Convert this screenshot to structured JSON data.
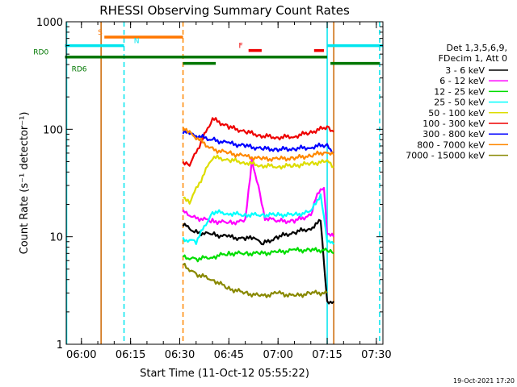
{
  "chart_data": {
    "type": "line",
    "title": "RHESSI Observing Summary Count Rates",
    "xlabel": "Start Time (11-Oct-12 05:55:22)",
    "ylabel": "Count Rate (s⁻¹ detector⁻¹)",
    "y_scale": "log",
    "ylim": [
      1,
      1000
    ],
    "xlim": [
      "05:55:22",
      "07:32:00"
    ],
    "x_tick_labels": [
      "06:00",
      "06:15",
      "06:30",
      "06:45",
      "07:00",
      "07:15",
      "07:30"
    ],
    "y_tick_labels": [
      "1",
      "10",
      "100",
      "1000"
    ],
    "timestamp": "19-Oct-2021 17:20",
    "legend": {
      "placement": "right",
      "header": [
        "Det 1,3,5,6,9,",
        "FDecim 1, Att 0"
      ],
      "entries": [
        {
          "label": "3 - 6 keV",
          "color": "#000000"
        },
        {
          "label": "6 - 12 keV",
          "color": "#ff00ff"
        },
        {
          "label": "12 - 25 keV",
          "color": "#00dd00"
        },
        {
          "label": "25 - 50 keV",
          "color": "#00ffff"
        },
        {
          "label": "50 - 100 keV",
          "color": "#dddd00"
        },
        {
          "label": "100 - 300 keV",
          "color": "#ee0000"
        },
        {
          "label": "300 - 800 keV",
          "color": "#0000ff"
        },
        {
          "label": "800 - 7000 keV",
          "color": "#ff8800"
        },
        {
          "label": "7000 - 15000 keV",
          "color": "#888800"
        }
      ]
    },
    "flags": [
      {
        "label": "S",
        "color": "#ff7700",
        "segments": [
          [
            "06:07",
            "06:31"
          ]
        ],
        "level": 720
      },
      {
        "label": "N",
        "color": "#00e5ee",
        "segments": [
          [
            "05:55",
            "06:13"
          ],
          [
            "07:15",
            "07:32"
          ]
        ],
        "level": 600
      },
      {
        "label": "F",
        "color": "#ee0000",
        "segments": [
          [
            "06:51",
            "06:55"
          ],
          [
            "07:11",
            "07:14"
          ]
        ],
        "level": 540
      },
      {
        "label": "RD0",
        "color": "#007700",
        "segments": [
          [
            "05:55",
            "07:15"
          ]
        ],
        "level": 470
      },
      {
        "label": "RD6",
        "color": "#007700",
        "segments": [
          [
            "06:31",
            "06:41"
          ],
          [
            "07:16",
            "07:31"
          ]
        ],
        "level": 410
      }
    ],
    "vlines": [
      {
        "time": "05:55:30",
        "color": "#00e5ee",
        "style": "solid"
      },
      {
        "time": "06:06",
        "color": "#cc6600",
        "style": "solid"
      },
      {
        "time": "06:13",
        "color": "#00e5ee",
        "style": "dashed"
      },
      {
        "time": "06:31",
        "color": "#ff8800",
        "style": "dashed"
      },
      {
        "time": "07:15",
        "color": "#00e5ee",
        "style": "solid"
      },
      {
        "time": "07:17",
        "color": "#cc6600",
        "style": "solid"
      },
      {
        "time": "07:31",
        "color": "#00e5ee",
        "style": "dashed"
      }
    ],
    "series": [
      {
        "name": "3 - 6 keV",
        "color": "#000000",
        "x": [
          "06:31",
          "06:35",
          "06:40",
          "06:45",
          "06:50",
          "06:53",
          "06:55",
          "07:00",
          "07:05",
          "07:10",
          "07:13",
          "07:15",
          "07:17"
        ],
        "y": [
          13,
          11,
          10.5,
          10,
          9.5,
          10,
          8.5,
          10,
          11,
          12,
          14,
          2.5,
          2.5
        ]
      },
      {
        "name": "6 - 12 keV",
        "color": "#ff00ff",
        "x": [
          "06:31",
          "06:35",
          "06:40",
          "06:45",
          "06:50",
          "06:52",
          "06:54",
          "06:56",
          "07:00",
          "07:05",
          "07:10",
          "07:12",
          "07:14",
          "07:15",
          "07:17"
        ],
        "y": [
          17,
          15,
          14,
          13.5,
          14,
          50,
          30,
          15,
          14,
          14,
          16,
          25,
          28,
          11,
          10
        ]
      },
      {
        "name": "12 - 25 keV",
        "color": "#00dd00",
        "x": [
          "06:31",
          "06:35",
          "06:40",
          "06:45",
          "06:50",
          "06:55",
          "07:00",
          "07:05",
          "07:10",
          "07:15",
          "07:17"
        ],
        "y": [
          6.5,
          6.2,
          6.5,
          7,
          7,
          7,
          7.2,
          7.5,
          7.5,
          7.5,
          7
        ]
      },
      {
        "name": "25 - 50 keV",
        "color": "#00ffff",
        "x": [
          "06:31",
          "06:35",
          "06:40",
          "06:45",
          "06:50",
          "06:55",
          "07:00",
          "07:05",
          "07:10",
          "07:13",
          "07:15",
          "07:17"
        ],
        "y": [
          9.5,
          9,
          17,
          16.5,
          16,
          16,
          16,
          16,
          17,
          25,
          9,
          8.5
        ]
      },
      {
        "name": "50 - 100 keV",
        "color": "#dddd00",
        "x": [
          "06:31",
          "06:33",
          "06:40",
          "06:45",
          "06:50",
          "06:55",
          "07:00",
          "07:05",
          "07:10",
          "07:15",
          "07:17"
        ],
        "y": [
          24,
          21,
          55,
          52,
          49,
          46,
          45,
          46,
          48,
          50,
          45
        ]
      },
      {
        "name": "100 - 300 keV",
        "color": "#ee0000",
        "x": [
          "06:31",
          "06:33",
          "06:40",
          "06:45",
          "06:50",
          "06:55",
          "07:00",
          "07:05",
          "07:10",
          "07:15",
          "07:17"
        ],
        "y": [
          50,
          46,
          125,
          105,
          95,
          87,
          84,
          86,
          94,
          105,
          95
        ]
      },
      {
        "name": "300 - 800 keV",
        "color": "#0000ff",
        "x": [
          "06:31",
          "06:33",
          "06:40",
          "06:45",
          "06:50",
          "06:55",
          "07:00",
          "07:05",
          "07:10",
          "07:15",
          "07:17"
        ],
        "y": [
          95,
          90,
          80,
          74,
          70,
          66,
          65,
          66,
          68,
          72,
          60
        ]
      },
      {
        "name": "800 - 7000 keV",
        "color": "#ff8800",
        "x": [
          "06:31",
          "06:33",
          "06:40",
          "06:45",
          "06:50",
          "06:55",
          "07:00",
          "07:05",
          "07:10",
          "07:15",
          "07:17"
        ],
        "y": [
          100,
          93,
          65,
          60,
          56,
          53,
          53,
          54,
          57,
          62,
          58
        ]
      },
      {
        "name": "7000 - 15000 keV",
        "color": "#888800",
        "x": [
          "06:31",
          "06:35",
          "06:40",
          "06:45",
          "06:50",
          "06:55",
          "07:00",
          "07:05",
          "07:10",
          "07:15"
        ],
        "y": [
          5.5,
          4.5,
          4,
          3.3,
          3,
          2.8,
          3,
          2.8,
          3,
          3
        ]
      }
    ]
  }
}
